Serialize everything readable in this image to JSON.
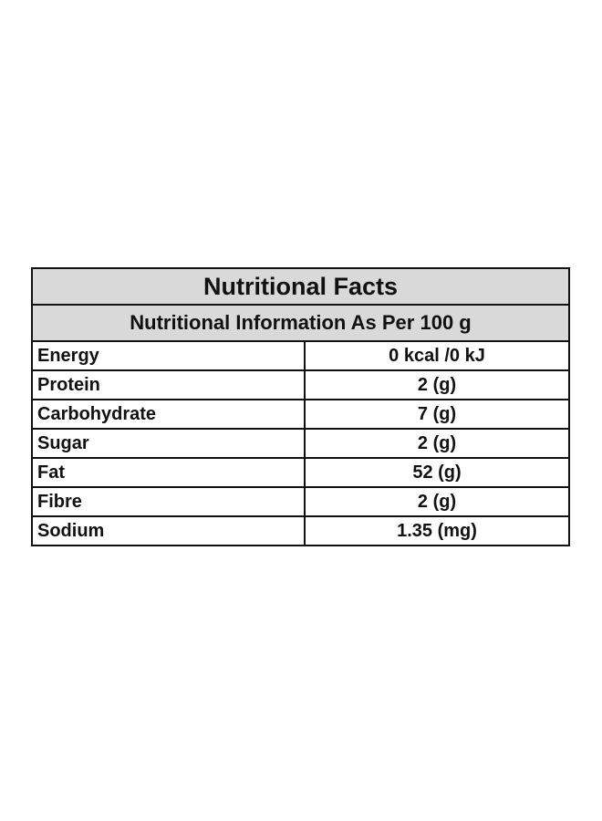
{
  "table": {
    "title": "Nutritional Facts",
    "subtitle": "Nutritional Information As Per 100 g",
    "rows": [
      {
        "name": "Energy",
        "value": "0 kcal /0 kJ"
      },
      {
        "name": "Protein",
        "value": "2 (g)"
      },
      {
        "name": "Carbohydrate",
        "value": "7 (g)"
      },
      {
        "name": "Sugar",
        "value": "2 (g)"
      },
      {
        "name": "Fat",
        "value": "52 (g)"
      },
      {
        "name": "Fibre",
        "value": "2 (g)"
      },
      {
        "name": "Sodium",
        "value": "1.35 (mg)"
      }
    ]
  }
}
